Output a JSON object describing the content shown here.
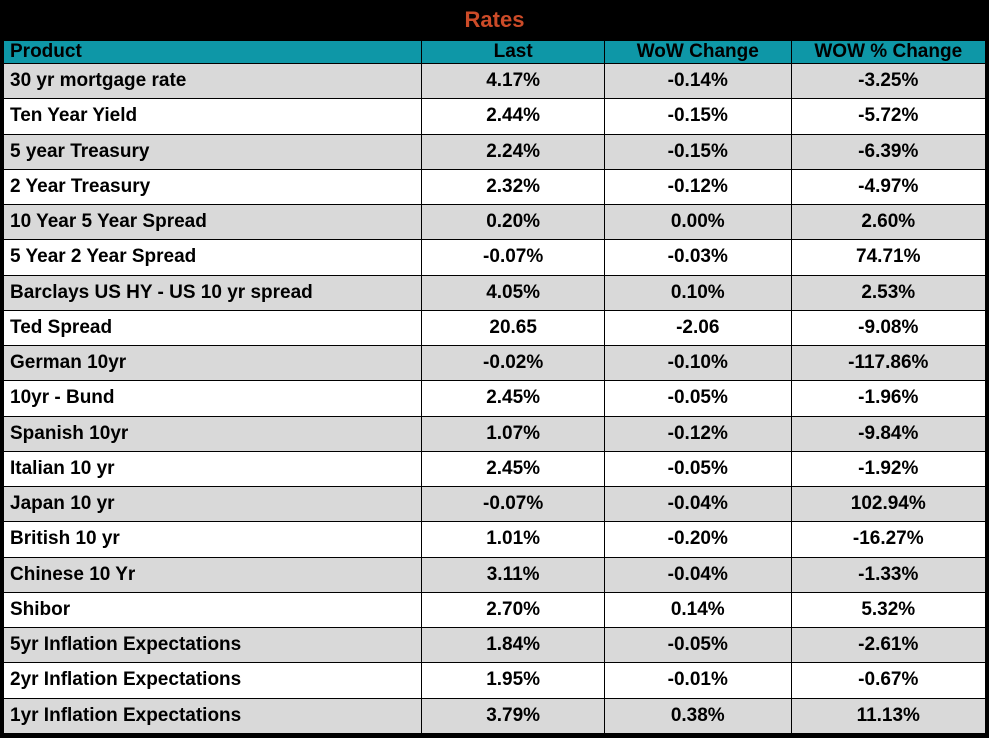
{
  "title": "Rates",
  "colors": {
    "title_text": "#CC4B28",
    "header_bg": "#0E97A7",
    "row_shaded": "#D9D9D9",
    "row_plain": "#FFFFFF",
    "grid": "#000000",
    "text": "#000000"
  },
  "chart_data": {
    "type": "table",
    "title": "Rates",
    "columns": [
      "Product",
      "Last",
      "WoW Change",
      "WOW % Change"
    ],
    "rows": [
      [
        "30 yr mortgage rate",
        "4.17%",
        "-0.14%",
        "-3.25%"
      ],
      [
        "Ten Year Yield",
        "2.44%",
        "-0.15%",
        "-5.72%"
      ],
      [
        "5 year Treasury",
        "2.24%",
        "-0.15%",
        "-6.39%"
      ],
      [
        "2 Year Treasury",
        "2.32%",
        "-0.12%",
        "-4.97%"
      ],
      [
        "10 Year 5 Year Spread",
        "0.20%",
        "0.00%",
        "2.60%"
      ],
      [
        "5 Year 2 Year Spread",
        "-0.07%",
        "-0.03%",
        "74.71%"
      ],
      [
        "Barclays US HY - US 10 yr spread",
        "4.05%",
        "0.10%",
        "2.53%"
      ],
      [
        "Ted Spread",
        "20.65",
        "-2.06",
        "-9.08%"
      ],
      [
        "German 10yr",
        "-0.02%",
        "-0.10%",
        "-117.86%"
      ],
      [
        "10yr - Bund",
        "2.45%",
        "-0.05%",
        "-1.96%"
      ],
      [
        "Spanish 10yr",
        "1.07%",
        "-0.12%",
        "-9.84%"
      ],
      [
        "Italian 10 yr",
        "2.45%",
        "-0.05%",
        "-1.92%"
      ],
      [
        "Japan 10 yr",
        "-0.07%",
        "-0.04%",
        "102.94%"
      ],
      [
        "British 10 yr",
        "1.01%",
        "-0.20%",
        "-16.27%"
      ],
      [
        "Chinese 10 Yr",
        "3.11%",
        "-0.04%",
        "-1.33%"
      ],
      [
        "Shibor",
        "2.70%",
        "0.14%",
        "5.32%"
      ],
      [
        "5yr Inflation Expectations",
        "1.84%",
        "-0.05%",
        "-2.61%"
      ],
      [
        "2yr Inflation Expectations",
        "1.95%",
        "-0.01%",
        "-0.67%"
      ],
      [
        "1yr Inflation Expectations",
        "3.79%",
        "0.38%",
        "11.13%"
      ]
    ]
  }
}
